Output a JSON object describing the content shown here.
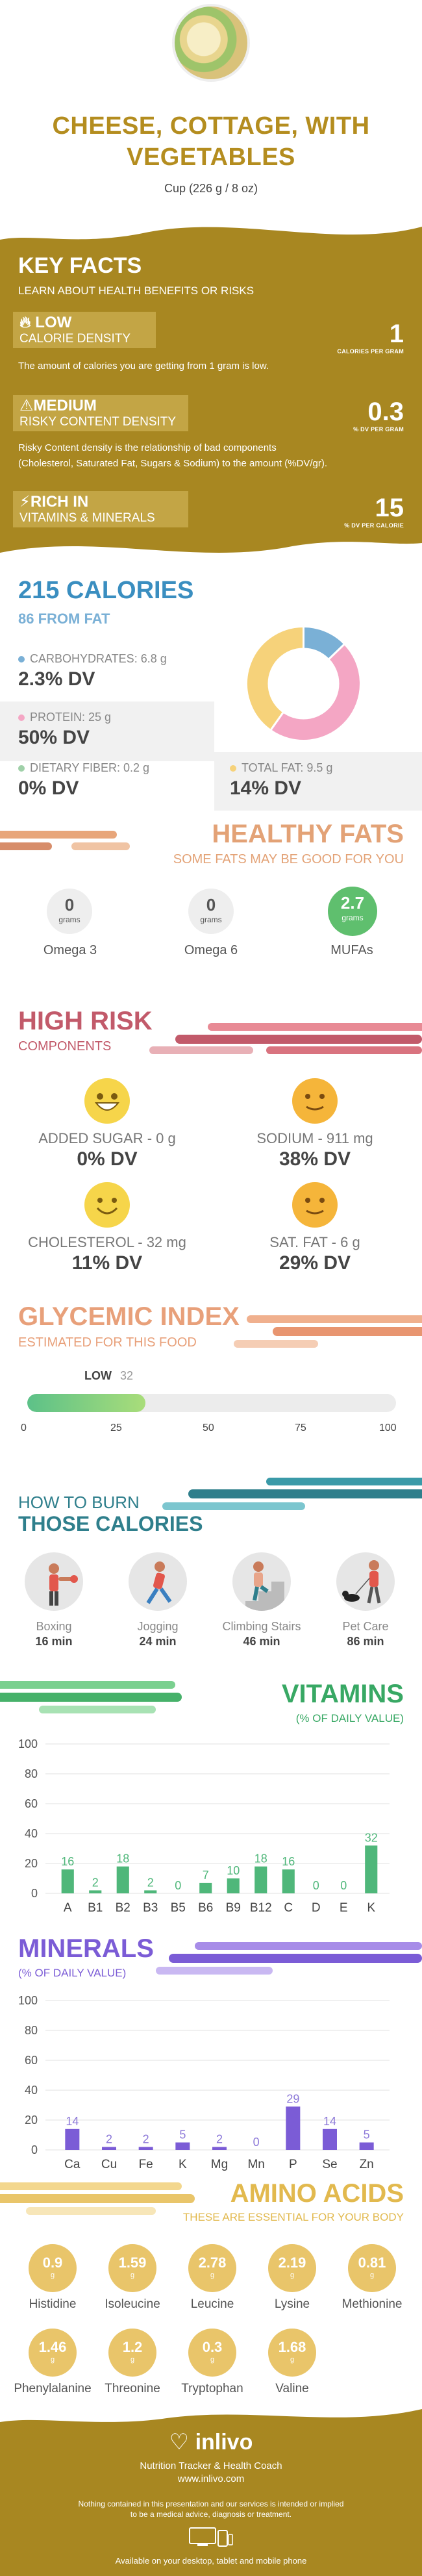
{
  "header": {
    "title_line1": "CHEESE, COTTAGE, WITH",
    "title_line2": "VEGETABLES",
    "serving": "Cup (226 g / 8 oz)"
  },
  "key_facts": {
    "title": "KEY FACTS",
    "subtitle": "LEARN ABOUT HEALTH BENEFITS OR RISKS",
    "items": [
      {
        "level": "LOW",
        "name": "CALORIE DENSITY",
        "desc": "The amount of calories you are getting from 1 gram is low.",
        "value": "1",
        "unit": "CALORIES PER GRAM",
        "icon": "flame-icon"
      },
      {
        "level": "MEDIUM",
        "name": "RISKY CONTENT DENSITY",
        "desc1": "Risky Content density is the relationship of bad components",
        "desc2": "(Cholesterol, Saturated Fat, Sugars & Sodium) to the amount (%DV/gr).",
        "value": "0.3",
        "unit": "% DV PER GRAM",
        "icon": "warning-icon"
      },
      {
        "level": "RICH IN",
        "name": "VITAMINS & MINERALS",
        "value": "15",
        "unit": "% DV PER CALORIE",
        "icon": "bolt-icon"
      }
    ]
  },
  "calories": {
    "title": "215 CALORIES",
    "subtitle": "86 FROM FAT",
    "macros": [
      {
        "label": "CARBOHYDRATES: 6.8 g",
        "dv": "2.3% DV",
        "color": "#7ab0d6"
      },
      {
        "label": "PROTEIN: 25 g",
        "dv": "50% DV",
        "color": "#f4a6c4"
      },
      {
        "label": "DIETARY FIBER: 0.2 g",
        "dv": "0% DV",
        "color": "#9fd0a8"
      },
      {
        "label": "TOTAL FAT: 9.5 g",
        "dv": "14% DV",
        "color": "#f6d27a"
      }
    ]
  },
  "healthy_fats": {
    "title": "HEALTHY FATS",
    "subtitle": "SOME FATS MAY BE GOOD FOR YOU",
    "items": [
      {
        "value": "0",
        "unit": "grams",
        "name": "Omega 3"
      },
      {
        "value": "0",
        "unit": "grams",
        "name": "Omega 6"
      },
      {
        "value": "2.7",
        "unit": "grams",
        "name": "MUFAs"
      }
    ]
  },
  "high_risk": {
    "title": "HIGH RISK",
    "subtitle": "COMPONENTS",
    "items": [
      {
        "label": "ADDED SUGAR - 0 g",
        "dv": "0% DV",
        "mood": "very-happy"
      },
      {
        "label": "SODIUM - 911 mg",
        "dv": "38% DV",
        "mood": "neutral-happy"
      },
      {
        "label": "CHOLESTEROL - 32 mg",
        "dv": "11% DV",
        "mood": "happy"
      },
      {
        "label": "SAT. FAT - 6 g",
        "dv": "29% DV",
        "mood": "neutral-happy"
      }
    ]
  },
  "glycemic": {
    "title": "GLYCEMIC INDEX",
    "subtitle": "ESTIMATED FOR THIS FOOD",
    "level": "LOW",
    "value": 32,
    "value_label": "32",
    "ticks": [
      "0",
      "25",
      "50",
      "75",
      "100"
    ]
  },
  "burn": {
    "title1": "HOW TO BURN",
    "title2": "THOSE CALORIES",
    "items": [
      {
        "name": "Boxing",
        "time": "16 min"
      },
      {
        "name": "Jogging",
        "time": "24 min"
      },
      {
        "name": "Climbing Stairs",
        "time": "46 min"
      },
      {
        "name": "Pet Care",
        "time": "86 min"
      }
    ]
  },
  "chart_data": [
    {
      "type": "bar",
      "title": "VITAMINS",
      "subtitle": "(% OF DAILY VALUE)",
      "categories": [
        "A",
        "B1",
        "B2",
        "B3",
        "B5",
        "B6",
        "B9",
        "B12",
        "C",
        "D",
        "E",
        "K"
      ],
      "values": [
        16,
        2,
        18,
        2,
        0,
        7,
        10,
        18,
        16,
        0,
        0,
        32
      ],
      "value_labels": [
        "16",
        "2",
        "18",
        "2",
        "0",
        "7",
        "10",
        "18",
        "16",
        "0",
        "0",
        "32"
      ],
      "yticks": [
        "0",
        "20",
        "40",
        "60",
        "80",
        "100"
      ],
      "ylim": [
        0,
        100
      ],
      "color": "#4fb77a",
      "grid": true
    },
    {
      "type": "bar",
      "title": "MINERALS",
      "subtitle": "(% OF DAILY VALUE)",
      "categories": [
        "Ca",
        "Cu",
        "Fe",
        "K",
        "Mg",
        "Mn",
        "P",
        "Se",
        "Zn"
      ],
      "values": [
        14,
        2,
        2,
        5,
        2,
        0,
        29,
        14,
        5
      ],
      "value_labels": [
        "14",
        "2",
        "2",
        "5",
        "2",
        "0",
        "29",
        "14",
        "5"
      ],
      "yticks": [
        "0",
        "20",
        "40",
        "60",
        "80",
        "100"
      ],
      "ylim": [
        0,
        100
      ],
      "color": "#7b5cd6",
      "grid": true
    }
  ],
  "amino": {
    "title": "AMINO ACIDS",
    "subtitle": "THESE ARE ESSENTIAL FOR YOUR BODY",
    "unit": "g",
    "items": [
      {
        "value": "0.9",
        "name": "Histidine"
      },
      {
        "value": "1.59",
        "name": "Isoleucine"
      },
      {
        "value": "2.78",
        "name": "Leucine"
      },
      {
        "value": "2.19",
        "name": "Lysine"
      },
      {
        "value": "0.81",
        "name": "Methionine"
      },
      {
        "value": "1.46",
        "name": "Phenylalanine"
      },
      {
        "value": "1.2",
        "name": "Threonine"
      },
      {
        "value": "0.3",
        "name": "Tryptophan"
      },
      {
        "value": "1.68",
        "name": "Valine"
      }
    ]
  },
  "footer": {
    "brand": "inlivo",
    "tagline": "Nutrition Tracker & Health Coach",
    "url": "www.inlivo.com",
    "disclaimer1": "Nothing contained in this presentation and our services is intended or implied",
    "disclaimer2": "to be a medical advice, diagnosis or treatment.",
    "available": "Available on your desktop, tablet and mobile phone"
  }
}
